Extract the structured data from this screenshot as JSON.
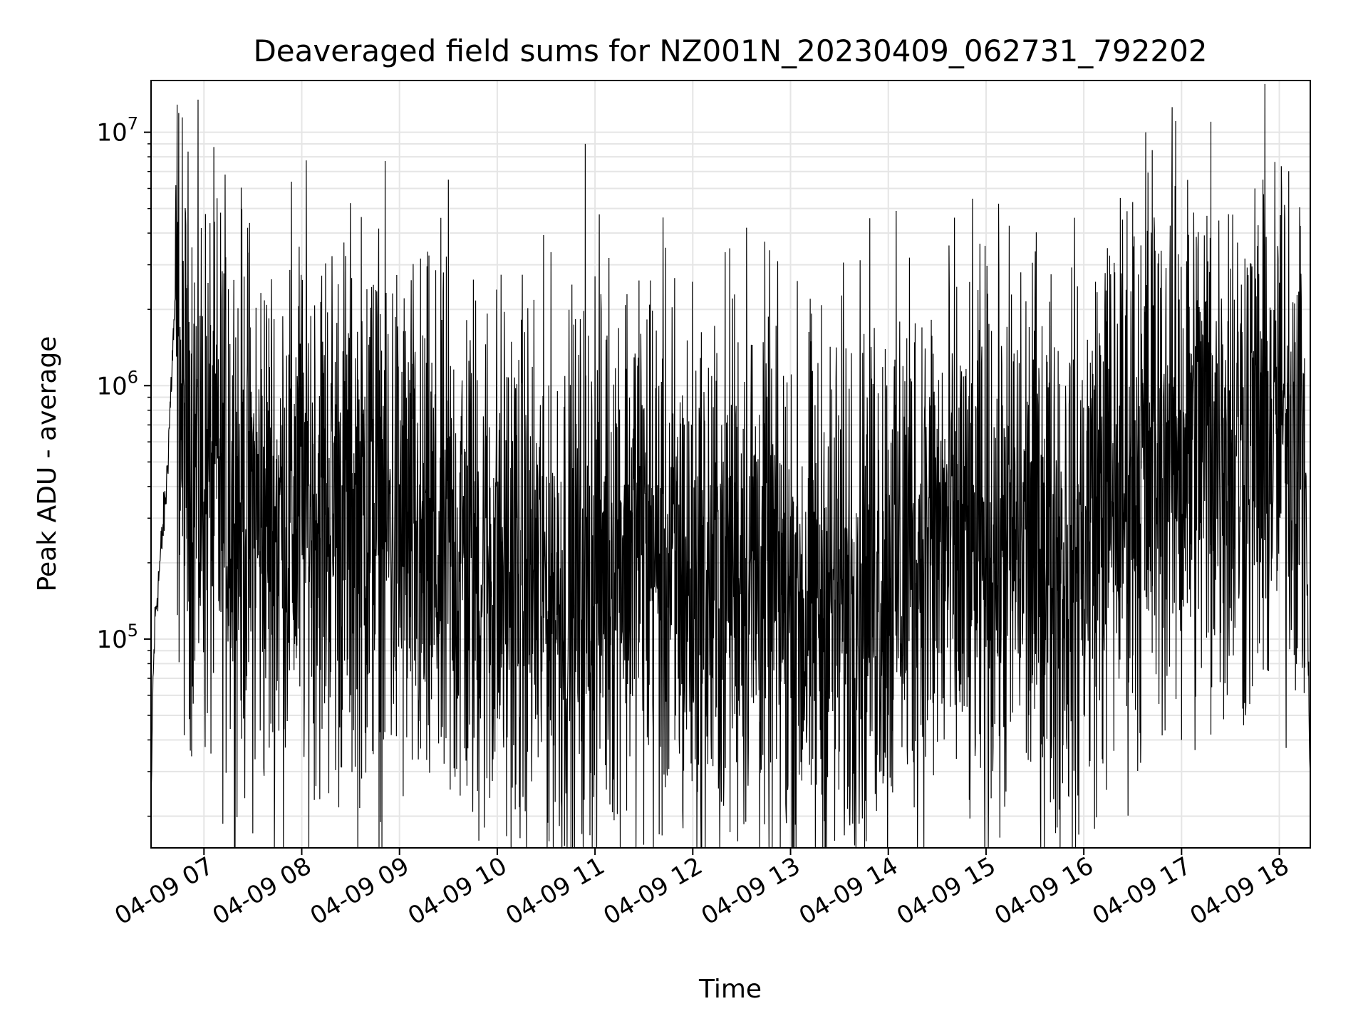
{
  "chart_data": {
    "type": "line",
    "title": "Deaveraged field sums for NZ001N_20230409_062731_792202",
    "xlabel": "Time",
    "ylabel": "Peak ADU - average",
    "yscale": "log",
    "ylim": [
      15000,
      16000000
    ],
    "xlim": [
      "2023-04-09 06:27:31",
      "2023-04-09 18:19:00"
    ],
    "grid": true,
    "grid_color": "#e5e5e5",
    "line_color": "#000000",
    "x_ticks": [
      "2023-04-09 07:00",
      "2023-04-09 08:00",
      "2023-04-09 09:00",
      "2023-04-09 10:00",
      "2023-04-09 11:00",
      "2023-04-09 12:00",
      "2023-04-09 13:00",
      "2023-04-09 14:00",
      "2023-04-09 15:00",
      "2023-04-09 16:00",
      "2023-04-09 17:00",
      "2023-04-09 18:00"
    ],
    "x_tick_labels": [
      "04-09 07",
      "04-09 08",
      "04-09 09",
      "04-09 10",
      "04-09 11",
      "04-09 12",
      "04-09 13",
      "04-09 14",
      "04-09 15",
      "04-09 16",
      "04-09 17",
      "04-09 18"
    ],
    "y_ticks": [
      {
        "value": 100000,
        "base": "10",
        "exp": "5"
      },
      {
        "value": 1000000,
        "base": "10",
        "exp": "6"
      },
      {
        "value": 10000000,
        "base": "10",
        "exp": "7"
      }
    ],
    "series": [
      {
        "x": [
          "2023-04-09 06:27:31",
          "2023-04-09 06:28:30",
          "2023-04-09 06:30:00",
          "2023-04-09 06:33:00",
          "2023-04-09 06:37:00",
          "2023-04-09 06:42:00",
          "2023-04-09 06:48:00",
          "2023-04-09 06:53:00",
          "2023-04-09 06:56:00",
          "2023-04-09 07:05:00",
          "2023-04-09 07:15:00",
          "2023-04-09 07:25:00",
          "2023-04-09 07:35:00",
          "2023-04-09 07:45:00",
          "2023-04-09 07:55:00",
          "2023-04-09 08:05:00",
          "2023-04-09 08:15:00",
          "2023-04-09 08:25:00",
          "2023-04-09 08:35:00",
          "2023-04-09 08:45:00",
          "2023-04-09 08:55:00",
          "2023-04-09 09:05:00",
          "2023-04-09 09:15:00",
          "2023-04-09 09:25:00",
          "2023-04-09 09:35:00",
          "2023-04-09 09:45:00",
          "2023-04-09 09:55:00",
          "2023-04-09 10:05:00",
          "2023-04-09 10:15:00",
          "2023-04-09 10:25:00",
          "2023-04-09 10:35:00",
          "2023-04-09 10:45:00",
          "2023-04-09 10:55:00",
          "2023-04-09 11:05:00",
          "2023-04-09 11:15:00",
          "2023-04-09 11:25:00",
          "2023-04-09 11:35:00",
          "2023-04-09 11:45:00",
          "2023-04-09 11:55:00",
          "2023-04-09 12:05:00",
          "2023-04-09 12:15:00",
          "2023-04-09 12:25:00",
          "2023-04-09 12:35:00",
          "2023-04-09 12:45:00",
          "2023-04-09 12:55:00",
          "2023-04-09 13:05:00",
          "2023-04-09 13:15:00",
          "2023-04-09 13:25:00",
          "2023-04-09 13:35:00",
          "2023-04-09 13:45:00",
          "2023-04-09 13:55:00",
          "2023-04-09 14:05:00",
          "2023-04-09 14:15:00",
          "2023-04-09 14:25:00",
          "2023-04-09 14:35:00",
          "2023-04-09 14:45:00",
          "2023-04-09 14:55:00",
          "2023-04-09 15:05:00",
          "2023-04-09 15:15:00",
          "2023-04-09 15:25:00",
          "2023-04-09 15:35:00",
          "2023-04-09 15:45:00",
          "2023-04-09 15:55:00",
          "2023-04-09 16:05:00",
          "2023-04-09 16:15:00",
          "2023-04-09 16:25:00",
          "2023-04-09 16:35:00",
          "2023-04-09 16:45:00",
          "2023-04-09 16:55:00",
          "2023-04-09 17:05:00",
          "2023-04-09 17:15:00",
          "2023-04-09 17:25:00",
          "2023-04-09 17:35:00",
          "2023-04-09 17:45:00",
          "2023-04-09 17:55:00",
          "2023-04-09 18:05:00",
          "2023-04-09 18:12:00",
          "2023-04-09 18:16:00",
          "2023-04-09 18:19:00"
        ],
        "y": [
          17000,
          60000,
          120000,
          200000,
          400000,
          2000000,
          550000,
          650000,
          450000,
          420000,
          380000,
          320000,
          300000,
          280000,
          330000,
          350000,
          330000,
          320000,
          300000,
          310000,
          280000,
          240000,
          200000,
          190000,
          210000,
          200000,
          190000,
          180000,
          170000,
          160000,
          155000,
          150000,
          160000,
          220000,
          260000,
          240000,
          210000,
          190000,
          170000,
          150000,
          160000,
          230000,
          200000,
          170000,
          140000,
          130000,
          130000,
          140000,
          160000,
          180000,
          190000,
          200000,
          220000,
          240000,
          230000,
          210000,
          200000,
          220000,
          240000,
          250000,
          230000,
          210000,
          200000,
          300000,
          380000,
          420000,
          480000,
          550000,
          580000,
          600000,
          620000,
          610000,
          560000,
          600000,
          640000,
          680000,
          800000,
          500000,
          25000
        ],
        "spikes": [
          {
            "x": "2023-04-09 06:50:00",
            "y": 2500000
          },
          {
            "x": "2023-04-09 07:15:00",
            "y": 2400000
          },
          {
            "x": "2023-04-09 07:23:00",
            "y": 2800000
          },
          {
            "x": "2023-04-09 07:27:00",
            "y": 2300000
          },
          {
            "x": "2023-04-09 08:40:00",
            "y": 2400000
          },
          {
            "x": "2023-04-09 08:44:00",
            "y": 2500000
          },
          {
            "x": "2023-04-09 09:30:00",
            "y": 6500000
          },
          {
            "x": "2023-04-09 10:33:00",
            "y": 2600000
          },
          {
            "x": "2023-04-09 10:54:00",
            "y": 9000000
          },
          {
            "x": "2023-04-09 11:00:00",
            "y": 2700000
          },
          {
            "x": "2023-04-09 11:27:00",
            "y": 2600000
          },
          {
            "x": "2023-04-09 11:34:00",
            "y": 2600000
          },
          {
            "x": "2023-04-09 12:33:00",
            "y": 4200000
          },
          {
            "x": "2023-04-09 14:13:00",
            "y": 3200000
          },
          {
            "x": "2023-04-09 16:19:00",
            "y": 2800000
          },
          {
            "x": "2023-04-09 16:30:00",
            "y": 5300000
          },
          {
            "x": "2023-04-09 16:38:00",
            "y": 10000000
          },
          {
            "x": "2023-04-09 16:42:00",
            "y": 8500000
          },
          {
            "x": "2023-04-09 16:58:00",
            "y": 3300000
          },
          {
            "x": "2023-04-09 17:18:00",
            "y": 11000000
          },
          {
            "x": "2023-04-09 17:47:00",
            "y": 2800000
          }
        ],
        "dips": [
          {
            "x": "2023-04-09 06:53:00",
            "y": 65000
          },
          {
            "x": "2023-04-09 09:13:00",
            "y": 37000
          },
          {
            "x": "2023-04-09 11:49:00",
            "y": 40000
          },
          {
            "x": "2023-04-09 12:20:00",
            "y": 31000
          },
          {
            "x": "2023-04-09 13:03:00",
            "y": 38000
          },
          {
            "x": "2023-04-09 13:30:00",
            "y": 36000
          },
          {
            "x": "2023-04-09 15:47:00",
            "y": 27000
          },
          {
            "x": "2023-04-09 16:35:00",
            "y": 40000
          },
          {
            "x": "2023-04-09 17:00:00",
            "y": 40000
          },
          {
            "x": "2023-04-09 17:18:00",
            "y": 42000
          }
        ]
      }
    ]
  }
}
